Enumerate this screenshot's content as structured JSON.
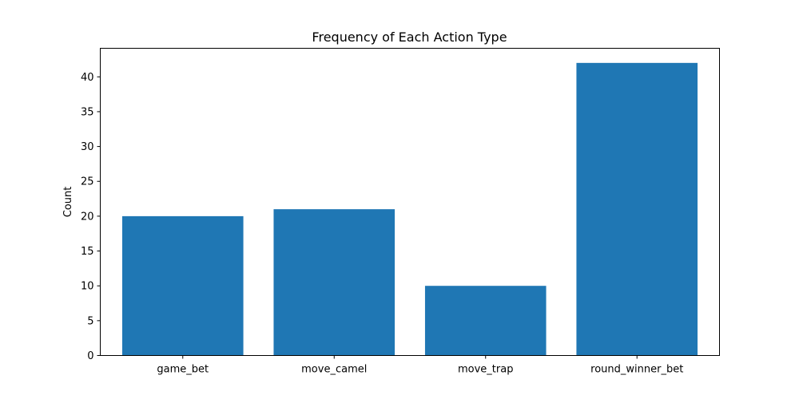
{
  "chart_data": {
    "type": "bar",
    "title": "Frequency of Each Action Type",
    "xlabel": "",
    "ylabel": "Count",
    "categories": [
      "game_bet",
      "move_camel",
      "move_trap",
      "round_winner_bet"
    ],
    "values": [
      20,
      21,
      10,
      42
    ],
    "ylim": [
      0,
      44.1
    ],
    "yticks": [
      0,
      5,
      10,
      15,
      20,
      25,
      30,
      35,
      40
    ],
    "bar_color": "#1f77b4",
    "grid": false,
    "legend": "none"
  }
}
